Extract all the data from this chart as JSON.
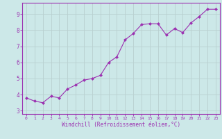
{
  "x": [
    0,
    1,
    2,
    3,
    4,
    5,
    6,
    7,
    8,
    9,
    10,
    11,
    12,
    13,
    14,
    15,
    16,
    17,
    18,
    19,
    20,
    21,
    22,
    23
  ],
  "y": [
    3.8,
    3.6,
    3.5,
    3.9,
    3.8,
    4.35,
    4.6,
    4.9,
    5.0,
    5.2,
    6.0,
    6.35,
    7.4,
    7.8,
    8.35,
    8.4,
    8.4,
    7.7,
    8.1,
    7.85,
    8.45,
    8.85,
    9.3,
    9.3
  ],
  "line_color": "#9b30b0",
  "marker": "D",
  "marker_size": 2.5,
  "bg_color": "#cce8e8",
  "grid_color": "#b8d0d0",
  "xlabel": "Windchill (Refroidissement éolien,°C)",
  "xlabel_color": "#9b30b0",
  "tick_color": "#9b30b0",
  "spine_color": "#9b30b0",
  "ylim": [
    2.8,
    9.7
  ],
  "xlim": [
    -0.5,
    23.5
  ],
  "yticks": [
    3,
    4,
    5,
    6,
    7,
    8,
    9
  ],
  "xticks": [
    0,
    1,
    2,
    3,
    4,
    5,
    6,
    7,
    8,
    9,
    10,
    11,
    12,
    13,
    14,
    15,
    16,
    17,
    18,
    19,
    20,
    21,
    22,
    23
  ]
}
